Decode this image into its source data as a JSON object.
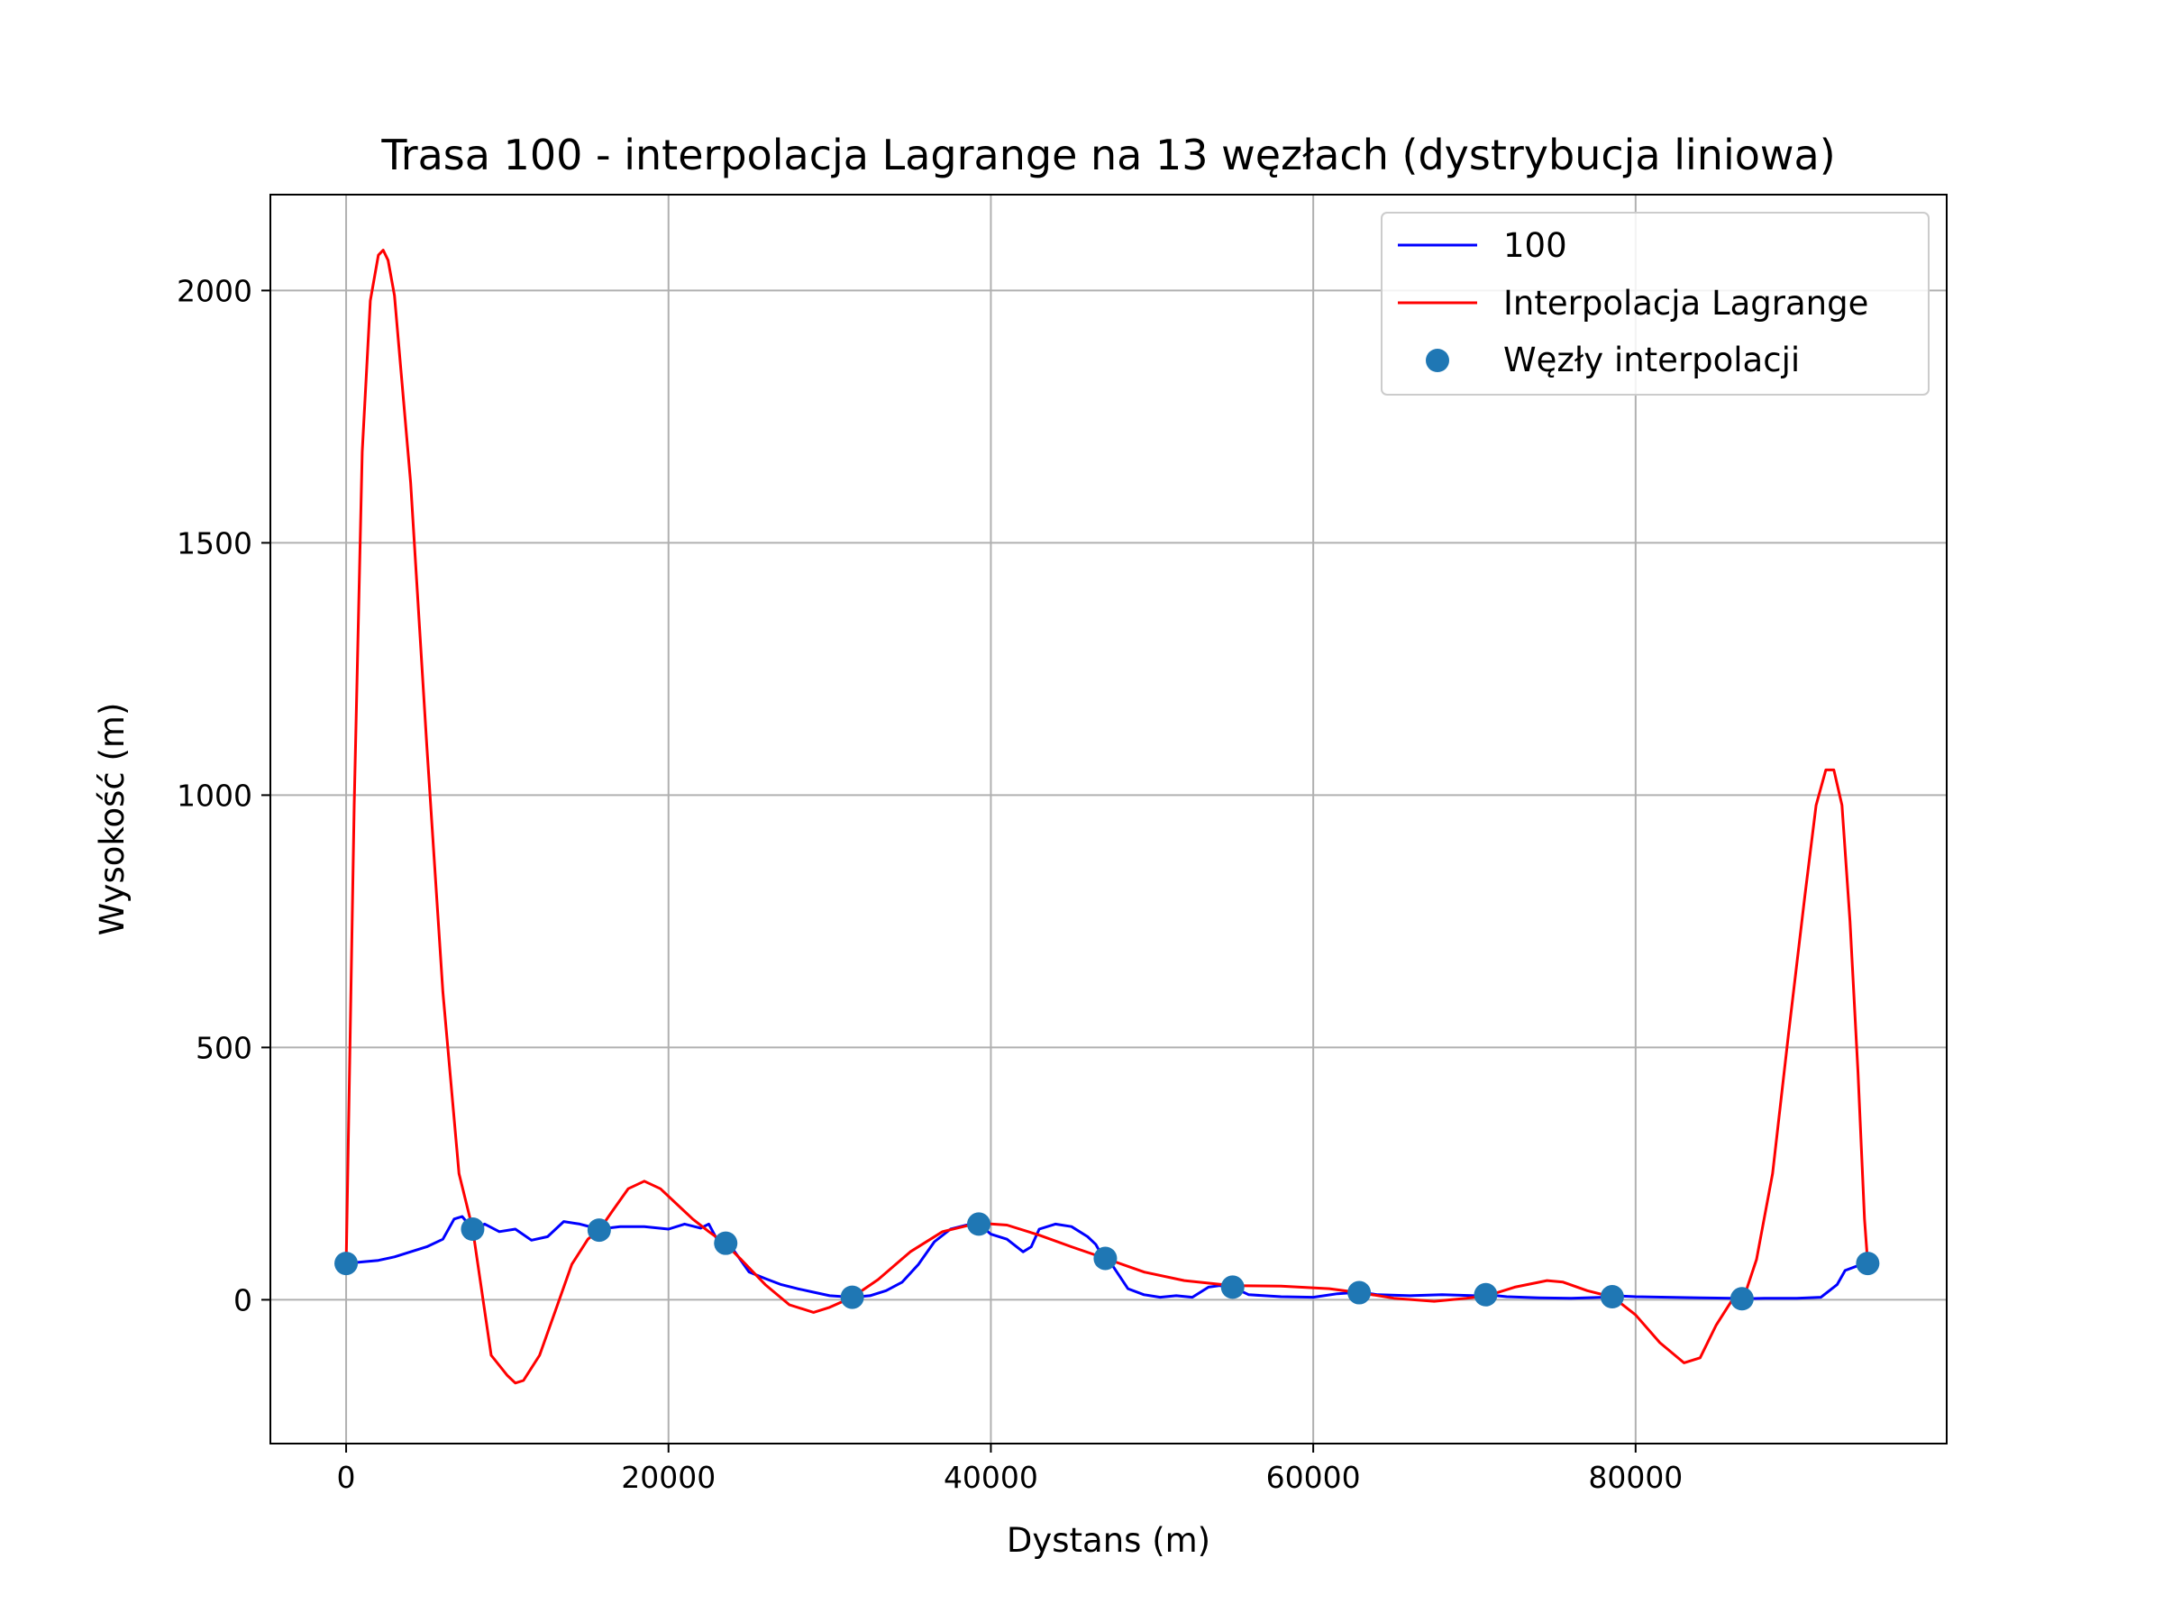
{
  "chart_data": {
    "type": "line",
    "title": "Trasa 100 - interpolacja Lagrange na 13 węzłach (dystrybucja liniowa)",
    "xlabel": "Dystans (m)",
    "ylabel": "Wysokość (m)",
    "xlim": [
      -4700,
      99300
    ],
    "ylim": [
      -285,
      2190
    ],
    "xticks": [
      0,
      20000,
      40000,
      60000,
      80000
    ],
    "xtick_labels": [
      "0",
      "20000",
      "40000",
      "60000",
      "80000"
    ],
    "yticks": [
      0,
      500,
      1000,
      1500,
      2000
    ],
    "ytick_labels": [
      "0",
      "500",
      "1000",
      "1500",
      "2000"
    ],
    "grid": true,
    "legend_position": "top-right",
    "colors": {
      "profile": "#0000ff",
      "lagrange": "#ff0000",
      "nodes": "#1f77b4",
      "grid": "#b0b0b0"
    },
    "series": [
      {
        "name": "100",
        "kind": "line",
        "x": [
          0,
          1000,
          2000,
          3000,
          4000,
          5000,
          6000,
          6700,
          7200,
          7850,
          8600,
          9500,
          10500,
          11500,
          12500,
          13500,
          14500,
          15700,
          17000,
          18500,
          20000,
          21000,
          22000,
          22500,
          23000,
          23500,
          24000,
          25000,
          26000,
          27000,
          28000,
          29000,
          30000,
          31400,
          32500,
          33500,
          34500,
          35500,
          36500,
          37500,
          38500,
          39200,
          40000,
          41000,
          42000,
          42500,
          43000,
          44000,
          45000,
          46000,
          46500,
          47000,
          47500,
          48500,
          49500,
          50500,
          51500,
          52500,
          53500,
          54200,
          55000,
          56000,
          58000,
          60000,
          61500,
          62900,
          64000,
          66000,
          68000,
          70000,
          70800,
          72000,
          74000,
          76000,
          78000,
          78600,
          80000,
          82000,
          84000,
          86000,
          86700,
          88000,
          90000,
          91500,
          92500,
          93000,
          94000,
          94400
        ],
        "y": [
          72,
          75,
          78,
          85,
          95,
          105,
          120,
          160,
          165,
          140,
          150,
          135,
          140,
          118,
          125,
          155,
          150,
          140,
          145,
          145,
          140,
          150,
          142,
          150,
          120,
          112,
          100,
          55,
          42,
          30,
          22,
          15,
          8,
          5,
          8,
          18,
          35,
          70,
          115,
          140,
          148,
          152,
          130,
          120,
          95,
          105,
          140,
          150,
          145,
          125,
          110,
          82,
          70,
          22,
          10,
          5,
          8,
          5,
          25,
          28,
          25,
          10,
          6,
          5,
          12,
          15,
          10,
          8,
          10,
          8,
          10,
          6,
          4,
          3,
          5,
          8,
          6,
          5,
          4,
          3,
          2,
          3,
          3,
          5,
          30,
          58,
          70,
          72
        ]
      },
      {
        "name": "Interpolacja Lagrange",
        "kind": "line",
        "x": [
          0,
          500,
          1000,
          1500,
          2000,
          2300,
          2600,
          3000,
          4000,
          5000,
          6000,
          7000,
          7850,
          9000,
          10000,
          10500,
          11000,
          12000,
          13000,
          14000,
          15000,
          15700,
          16500,
          17500,
          18500,
          19500,
          20500,
          21500,
          22500,
          23500,
          24500,
          26000,
          27500,
          29000,
          30000,
          31400,
          33000,
          35000,
          37000,
          39200,
          41000,
          43000,
          45000,
          47100,
          49500,
          52000,
          55000,
          58000,
          61000,
          62900,
          65000,
          67500,
          69500,
          70800,
          72500,
          74500,
          75500,
          77000,
          78600,
          80000,
          81500,
          83000,
          84000,
          85000,
          86000,
          86700,
          87500,
          88500,
          89500,
          90500,
          91200,
          91800,
          92300,
          92800,
          93300,
          93800,
          94200,
          94400
        ],
        "y": [
          72,
          980,
          1680,
          1980,
          2070,
          2080,
          2060,
          1990,
          1620,
          1100,
          610,
          250,
          140,
          -110,
          -150,
          -165,
          -160,
          -110,
          -20,
          70,
          120,
          138,
          175,
          220,
          235,
          220,
          190,
          160,
          135,
          112,
          80,
          30,
          -10,
          -25,
          -15,
          5,
          40,
          95,
          135,
          152,
          148,
          128,
          105,
          82,
          55,
          38,
          28,
          27,
          22,
          14,
          3,
          -3,
          3,
          8,
          25,
          38,
          35,
          18,
          5,
          -30,
          -85,
          -125,
          -115,
          -50,
          0,
          3,
          80,
          250,
          530,
          800,
          980,
          1050,
          1050,
          980,
          750,
          450,
          160,
          72
        ]
      },
      {
        "name": "Węzły interpolacji",
        "kind": "scatter",
        "x": [
          0,
          7850,
          15700,
          23550,
          31400,
          39250,
          47100,
          55000,
          62850,
          70700,
          78550,
          86600,
          94400
        ],
        "y": [
          72,
          140,
          138,
          112,
          5,
          150,
          82,
          25,
          14,
          10,
          6,
          2,
          72
        ]
      }
    ]
  }
}
